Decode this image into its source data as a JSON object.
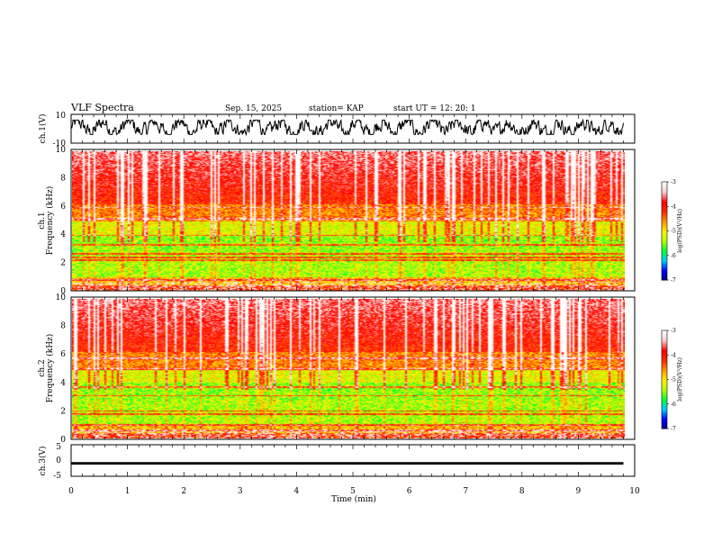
{
  "header": {
    "title": "VLF Spectra",
    "date": "Sep. 15, 2025",
    "station": "station= KAP",
    "start": "start  UT  =   12: 20: 1"
  },
  "colors": {
    "colormap": [
      "#00007f",
      "#0000ff",
      "#00c8ff",
      "#00ff3c",
      "#b4ff00",
      "#fff000",
      "#ff9600",
      "#ff2a00",
      "#ff0000",
      "#ffc8c8",
      "#ffffff"
    ]
  },
  "chart_data": [
    {
      "id": "ch1-waveform",
      "type": "line",
      "ylabel": "ch.1(V)",
      "ylim": [
        -10,
        10
      ],
      "yticks": [
        "10",
        "-10"
      ],
      "xlim": [
        0,
        10
      ],
      "x_extent_min": [
        0,
        9.8
      ],
      "amplitude_range_V": [
        -4,
        6
      ],
      "grid": false
    },
    {
      "id": "ch1-spectrogram",
      "type": "heatmap",
      "ylabel": "ch.1\nFrequency  (kHz)",
      "ylim": [
        0,
        10
      ],
      "yticks": [
        "0",
        "2",
        "4",
        "6",
        "8",
        "10"
      ],
      "xlim": [
        0,
        10
      ],
      "colorbar": {
        "label": "log(PSD)(V²/Hz)",
        "range": [
          -7,
          -3
        ],
        "ticks": [
          "-3",
          "-4",
          "-5",
          "-6",
          "-7"
        ]
      },
      "grid": false
    },
    {
      "id": "ch2-spectrogram",
      "type": "heatmap",
      "ylabel": "ch.2\nFrequency  (kHz)",
      "ylim": [
        0,
        10
      ],
      "yticks": [
        "0",
        "2",
        "4",
        "6",
        "8",
        "10"
      ],
      "xlim": [
        0,
        10
      ],
      "colorbar": {
        "label": "log(PSD)(V²/Hz)",
        "range": [
          -7,
          -3
        ],
        "ticks": [
          "-3",
          "-4",
          "-5",
          "-6",
          "-7"
        ]
      },
      "grid": false
    },
    {
      "id": "ch3-waveform",
      "type": "line",
      "ylabel": "ch.3(V)",
      "ylim": [
        -5,
        5
      ],
      "yticks": [
        "5",
        "0",
        "-5"
      ],
      "xlim": [
        0,
        10
      ],
      "xlabel": "Time  (min)",
      "xticks": [
        "0",
        "1",
        "2",
        "3",
        "4",
        "5",
        "6",
        "7",
        "8",
        "9",
        "10"
      ],
      "x_extent_min": [
        0,
        9.8
      ],
      "amplitude_range_V": [
        -1.3,
        -0.5
      ],
      "grid": false
    }
  ]
}
